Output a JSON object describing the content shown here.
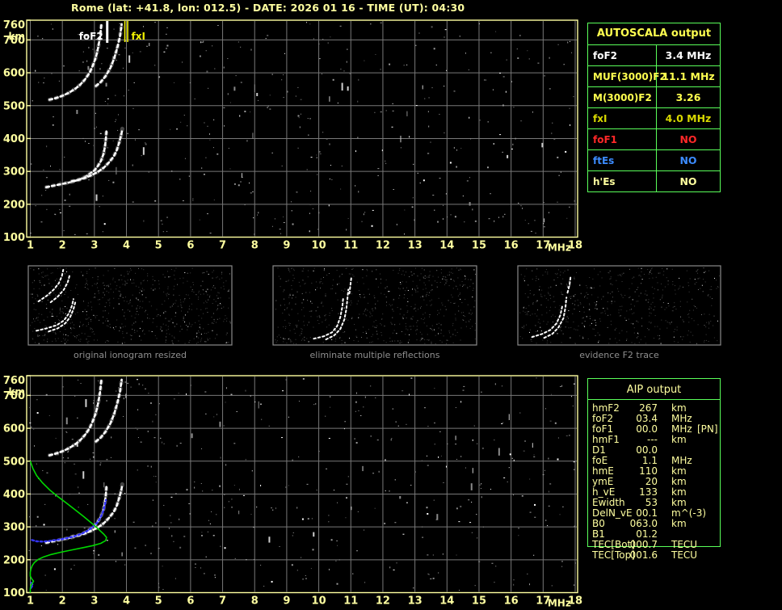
{
  "title": "Rome (lat: +41.8, lon: 012.5) - DATE: 2026 01 16 - TIME (UT): 04:30",
  "colors": {
    "axis_yellow": "#ffffa0",
    "grid_gray": "#787878",
    "table_green": "#5aff5a",
    "trace_white": "#ffffff",
    "profile_green": "#00d800",
    "fit_blue": "#3434ff",
    "caption_gray": "#8f8f8f",
    "marker_yellow": "#f0f000"
  },
  "autoscala_table": {
    "title": "AUTOSCALA output",
    "rows": [
      {
        "label": "foF2",
        "value": "3.4 MHz",
        "color": "#ffffff"
      },
      {
        "label": "MUF(3000)F2",
        "value": "11.1 MHz",
        "color": "#ffff4f"
      },
      {
        "label": "M(3000)F2",
        "value": "3.26",
        "color": "#ffff4f"
      },
      {
        "label": "fxI",
        "value": "4.0 MHz",
        "color": "#d9d900"
      },
      {
        "label": "foF1",
        "value": "NO",
        "color": "#ff2828"
      },
      {
        "label": "ftEs",
        "value": "NO",
        "color": "#3c8cff"
      },
      {
        "label": "h'Es",
        "value": "NO",
        "color": "#ffff9e"
      }
    ]
  },
  "aip_table": {
    "title": "AIP output",
    "rows": [
      {
        "label": "hmF2",
        "value": "267",
        "unit": "km",
        "note": ""
      },
      {
        "label": "foF2",
        "value": "03.4",
        "unit": "MHz",
        "note": ""
      },
      {
        "label": "foF1",
        "value": "00.0",
        "unit": "MHz",
        "note": "[PN]"
      },
      {
        "label": "hmF1",
        "value": "---",
        "unit": "km",
        "note": ""
      },
      {
        "label": "D1",
        "value": "00.0",
        "unit": "",
        "note": ""
      },
      {
        "label": "foE",
        "value": "1.1",
        "unit": "MHz",
        "note": ""
      },
      {
        "label": "hmE",
        "value": "110",
        "unit": "km",
        "note": ""
      },
      {
        "label": "ymE",
        "value": "20",
        "unit": "km",
        "note": ""
      },
      {
        "label": "h_vE",
        "value": "133",
        "unit": "km",
        "note": ""
      },
      {
        "label": "Ewidth",
        "value": "53",
        "unit": "km",
        "note": ""
      },
      {
        "label": "DelN_vE",
        "value": "00.1",
        "unit": "m^(-3)",
        "note": ""
      },
      {
        "label": "B0",
        "value": "063.0",
        "unit": "km",
        "note": ""
      },
      {
        "label": "B1",
        "value": "01.2",
        "unit": "",
        "note": ""
      },
      {
        "label": "TEC[Bot]",
        "value": "000.7",
        "unit": "TECU",
        "note": ""
      },
      {
        "label": "TEC[Top]",
        "value": "001.6",
        "unit": "TECU",
        "note": ""
      }
    ]
  },
  "panels": [
    {
      "caption": "original ionogram resized",
      "seed": 3,
      "count": 720,
      "traces": [
        [
          [
            0.04,
            0.82
          ],
          [
            0.09,
            0.79
          ],
          [
            0.14,
            0.75
          ],
          [
            0.175,
            0.69
          ],
          [
            0.2,
            0.6
          ],
          [
            0.215,
            0.5
          ],
          [
            0.222,
            0.42
          ]
        ],
        [
          [
            0.1,
            0.83
          ],
          [
            0.145,
            0.79
          ],
          [
            0.18,
            0.73
          ],
          [
            0.205,
            0.65
          ],
          [
            0.222,
            0.55
          ],
          [
            0.232,
            0.45
          ]
        ],
        [
          [
            0.05,
            0.45
          ],
          [
            0.09,
            0.38
          ],
          [
            0.125,
            0.3
          ],
          [
            0.15,
            0.22
          ],
          [
            0.165,
            0.13
          ],
          [
            0.172,
            0.05
          ]
        ],
        [
          [
            0.11,
            0.46
          ],
          [
            0.145,
            0.39
          ],
          [
            0.175,
            0.3
          ],
          [
            0.195,
            0.2
          ],
          [
            0.205,
            0.1
          ]
        ]
      ]
    },
    {
      "caption": "eliminate multiple reflections",
      "seed": 4,
      "count": 640,
      "traces": [
        [
          [
            0.2,
            0.92
          ],
          [
            0.25,
            0.89
          ],
          [
            0.29,
            0.84
          ],
          [
            0.315,
            0.76
          ],
          [
            0.33,
            0.65
          ],
          [
            0.34,
            0.52
          ],
          [
            0.345,
            0.4
          ]
        ],
        [
          [
            0.26,
            0.93
          ],
          [
            0.3,
            0.88
          ],
          [
            0.33,
            0.8
          ],
          [
            0.35,
            0.68
          ],
          [
            0.36,
            0.55
          ],
          [
            0.365,
            0.42
          ],
          [
            0.37,
            0.3
          ]
        ],
        [
          [
            0.375,
            0.35
          ],
          [
            0.38,
            0.24
          ],
          [
            0.385,
            0.14
          ]
        ]
      ]
    },
    {
      "caption": "evidence F2 trace",
      "seed": 5,
      "count": 560,
      "traces": [
        [
          [
            0.07,
            0.9
          ],
          [
            0.12,
            0.86
          ],
          [
            0.16,
            0.81
          ],
          [
            0.19,
            0.73
          ],
          [
            0.21,
            0.62
          ],
          [
            0.22,
            0.5
          ]
        ],
        [
          [
            0.13,
            0.91
          ],
          [
            0.17,
            0.86
          ],
          [
            0.2,
            0.78
          ],
          [
            0.225,
            0.66
          ],
          [
            0.235,
            0.52
          ],
          [
            0.24,
            0.4
          ]
        ],
        [
          [
            0.245,
            0.34
          ],
          [
            0.255,
            0.24
          ],
          [
            0.26,
            0.14
          ]
        ]
      ]
    }
  ],
  "chart_data": [
    {
      "id": "top_ionogram",
      "type": "scatter",
      "xlabel": "MHz",
      "ylabel": "km",
      "xlim": [
        1,
        18
      ],
      "ylim": [
        100,
        760
      ],
      "grid": true,
      "x_ticks": [
        "1",
        "2",
        "3",
        "4",
        "5",
        "6",
        "7",
        "8",
        "9",
        "10",
        "11",
        "12",
        "13",
        "14",
        "15",
        "16",
        "17",
        "18"
      ],
      "y_ticks": [
        "760",
        "700",
        "600",
        "500",
        "400",
        "300",
        "200",
        "100"
      ],
      "noise": {
        "seed": 11,
        "count": 430
      },
      "markers": [
        {
          "name": "foF2",
          "label": "foF2",
          "freq_mhz": 3.4,
          "color": "#ffffff"
        },
        {
          "name": "fxI",
          "label": "fxI",
          "freq_mhz": 4.0,
          "color": "#f0f000"
        }
      ],
      "series": [
        {
          "name": "F2 trace 1st hop (O)",
          "color": "#ffffff",
          "points": [
            [
              1.5,
              252
            ],
            [
              1.65,
              255
            ],
            [
              1.8,
              258
            ],
            [
              2.0,
              262
            ],
            [
              2.2,
              266
            ],
            [
              2.4,
              271
            ],
            [
              2.55,
              276
            ],
            [
              2.7,
              283
            ],
            [
              2.85,
              292
            ],
            [
              3.0,
              303
            ],
            [
              3.1,
              315
            ],
            [
              3.2,
              331
            ],
            [
              3.28,
              352
            ],
            [
              3.33,
              375
            ],
            [
              3.36,
              400
            ],
            [
              3.38,
              428
            ]
          ]
        },
        {
          "name": "F2 trace 1st hop (X)",
          "color": "#ffffff",
          "points": [
            [
              2.3,
              270
            ],
            [
              2.5,
              274
            ],
            [
              2.7,
              280
            ],
            [
              2.9,
              288
            ],
            [
              3.1,
              298
            ],
            [
              3.3,
              312
            ],
            [
              3.45,
              327
            ],
            [
              3.6,
              345
            ],
            [
              3.7,
              365
            ],
            [
              3.78,
              390
            ],
            [
              3.84,
              412
            ],
            [
              3.87,
              430
            ]
          ]
        },
        {
          "name": "F2 trace 2nd hop (O)",
          "color": "#ffffff",
          "points": [
            [
              1.6,
              518
            ],
            [
              1.8,
              523
            ],
            [
              2.0,
              530
            ],
            [
              2.2,
              539
            ],
            [
              2.4,
              551
            ],
            [
              2.55,
              563
            ],
            [
              2.7,
              579
            ],
            [
              2.85,
              600
            ],
            [
              2.95,
              622
            ],
            [
              3.05,
              648
            ],
            [
              3.12,
              678
            ],
            [
              3.18,
              712
            ],
            [
              3.22,
              750
            ]
          ]
        },
        {
          "name": "F2 trace 2nd hop (X)",
          "color": "#ffffff",
          "points": [
            [
              3.05,
              560
            ],
            [
              3.2,
              572
            ],
            [
              3.35,
              590
            ],
            [
              3.5,
              615
            ],
            [
              3.62,
              645
            ],
            [
              3.72,
              678
            ],
            [
              3.8,
              712
            ],
            [
              3.85,
              748
            ]
          ]
        }
      ]
    },
    {
      "id": "bottom_ionogram",
      "type": "scatter",
      "xlabel": "MHz",
      "ylabel": "km",
      "xlim": [
        1,
        18
      ],
      "ylim": [
        100,
        760
      ],
      "grid": true,
      "x_ticks": [
        "1",
        "2",
        "3",
        "4",
        "5",
        "6",
        "7",
        "8",
        "9",
        "10",
        "11",
        "12",
        "13",
        "14",
        "15",
        "16",
        "17",
        "18"
      ],
      "y_ticks": [
        "760",
        "700",
        "600",
        "500",
        "400",
        "300",
        "200",
        "100"
      ],
      "noise": {
        "seed": 12,
        "count": 430
      },
      "markers": [],
      "series": [
        {
          "name": "F2 trace 1st hop (O)",
          "color": "#ffffff",
          "points": [
            [
              1.5,
              252
            ],
            [
              1.65,
              255
            ],
            [
              1.8,
              258
            ],
            [
              2.0,
              262
            ],
            [
              2.2,
              266
            ],
            [
              2.4,
              271
            ],
            [
              2.55,
              276
            ],
            [
              2.7,
              283
            ],
            [
              2.85,
              292
            ],
            [
              3.0,
              303
            ],
            [
              3.1,
              315
            ],
            [
              3.2,
              331
            ],
            [
              3.28,
              352
            ],
            [
              3.33,
              375
            ],
            [
              3.36,
              400
            ],
            [
              3.38,
              428
            ]
          ]
        },
        {
          "name": "F2 trace 1st hop (X)",
          "color": "#ffffff",
          "points": [
            [
              2.3,
              270
            ],
            [
              2.5,
              274
            ],
            [
              2.7,
              280
            ],
            [
              2.9,
              288
            ],
            [
              3.1,
              298
            ],
            [
              3.3,
              312
            ],
            [
              3.45,
              327
            ],
            [
              3.6,
              345
            ],
            [
              3.7,
              365
            ],
            [
              3.78,
              390
            ],
            [
              3.84,
              412
            ],
            [
              3.87,
              430
            ]
          ]
        },
        {
          "name": "F2 trace 2nd hop (O)",
          "color": "#ffffff",
          "points": [
            [
              1.6,
              518
            ],
            [
              1.8,
              523
            ],
            [
              2.0,
              530
            ],
            [
              2.2,
              539
            ],
            [
              2.4,
              551
            ],
            [
              2.55,
              563
            ],
            [
              2.7,
              579
            ],
            [
              2.85,
              600
            ],
            [
              2.95,
              622
            ],
            [
              3.05,
              648
            ],
            [
              3.12,
              678
            ],
            [
              3.18,
              712
            ],
            [
              3.22,
              750
            ]
          ]
        },
        {
          "name": "F2 trace 2nd hop (X)",
          "color": "#ffffff",
          "points": [
            [
              3.05,
              560
            ],
            [
              3.2,
              572
            ],
            [
              3.35,
              590
            ],
            [
              3.5,
              615
            ],
            [
              3.62,
              645
            ],
            [
              3.72,
              678
            ],
            [
              3.8,
              712
            ],
            [
              3.85,
              748
            ]
          ]
        },
        {
          "name": "autoscaled F2 trace fit",
          "color": "#3434ff",
          "style": "dotted",
          "points": [
            [
              1.05,
              260
            ],
            [
              1.2,
              256
            ],
            [
              1.4,
              255
            ],
            [
              1.6,
              257
            ],
            [
              1.8,
              260
            ],
            [
              2.0,
              263
            ],
            [
              2.2,
              267
            ],
            [
              2.4,
              272
            ],
            [
              2.6,
              279
            ],
            [
              2.8,
              289
            ],
            [
              2.95,
              300
            ],
            [
              3.1,
              314
            ],
            [
              3.2,
              330
            ],
            [
              3.28,
              350
            ],
            [
              3.33,
              368
            ],
            [
              3.36,
              382
            ]
          ]
        },
        {
          "name": "E region fit marks",
          "color": "#3434ff",
          "style": "dotted",
          "points": [
            [
              1.03,
              130
            ],
            [
              1.08,
              123
            ],
            [
              1.02,
              114
            ]
          ]
        },
        {
          "name": "electron density profile",
          "color": "#00d800",
          "style": "solid",
          "points": [
            [
              1.0,
              500
            ],
            [
              1.08,
              478
            ],
            [
              1.2,
              456
            ],
            [
              1.38,
              434
            ],
            [
              1.6,
              413
            ],
            [
              1.85,
              393
            ],
            [
              2.12,
              373
            ],
            [
              2.4,
              352
            ],
            [
              2.67,
              331
            ],
            [
              2.92,
              311
            ],
            [
              3.14,
              292
            ],
            [
              3.3,
              277
            ],
            [
              3.38,
              268
            ],
            [
              3.35,
              258
            ],
            [
              3.2,
              250
            ],
            [
              2.95,
              243
            ],
            [
              2.65,
              237
            ],
            [
              2.3,
              230
            ],
            [
              1.95,
              223
            ],
            [
              1.65,
              216
            ],
            [
              1.42,
              209
            ],
            [
              1.25,
              201
            ],
            [
              1.13,
              192
            ],
            [
              1.06,
              182
            ],
            [
              1.02,
              172
            ],
            [
              1.0,
              162
            ],
            [
              1.0,
              150
            ],
            [
              1.05,
              141
            ],
            [
              1.1,
              135
            ],
            [
              1.06,
              128
            ],
            [
              1.01,
              120
            ],
            [
              1.0,
              110
            ],
            [
              1.0,
              100
            ]
          ]
        }
      ]
    }
  ]
}
